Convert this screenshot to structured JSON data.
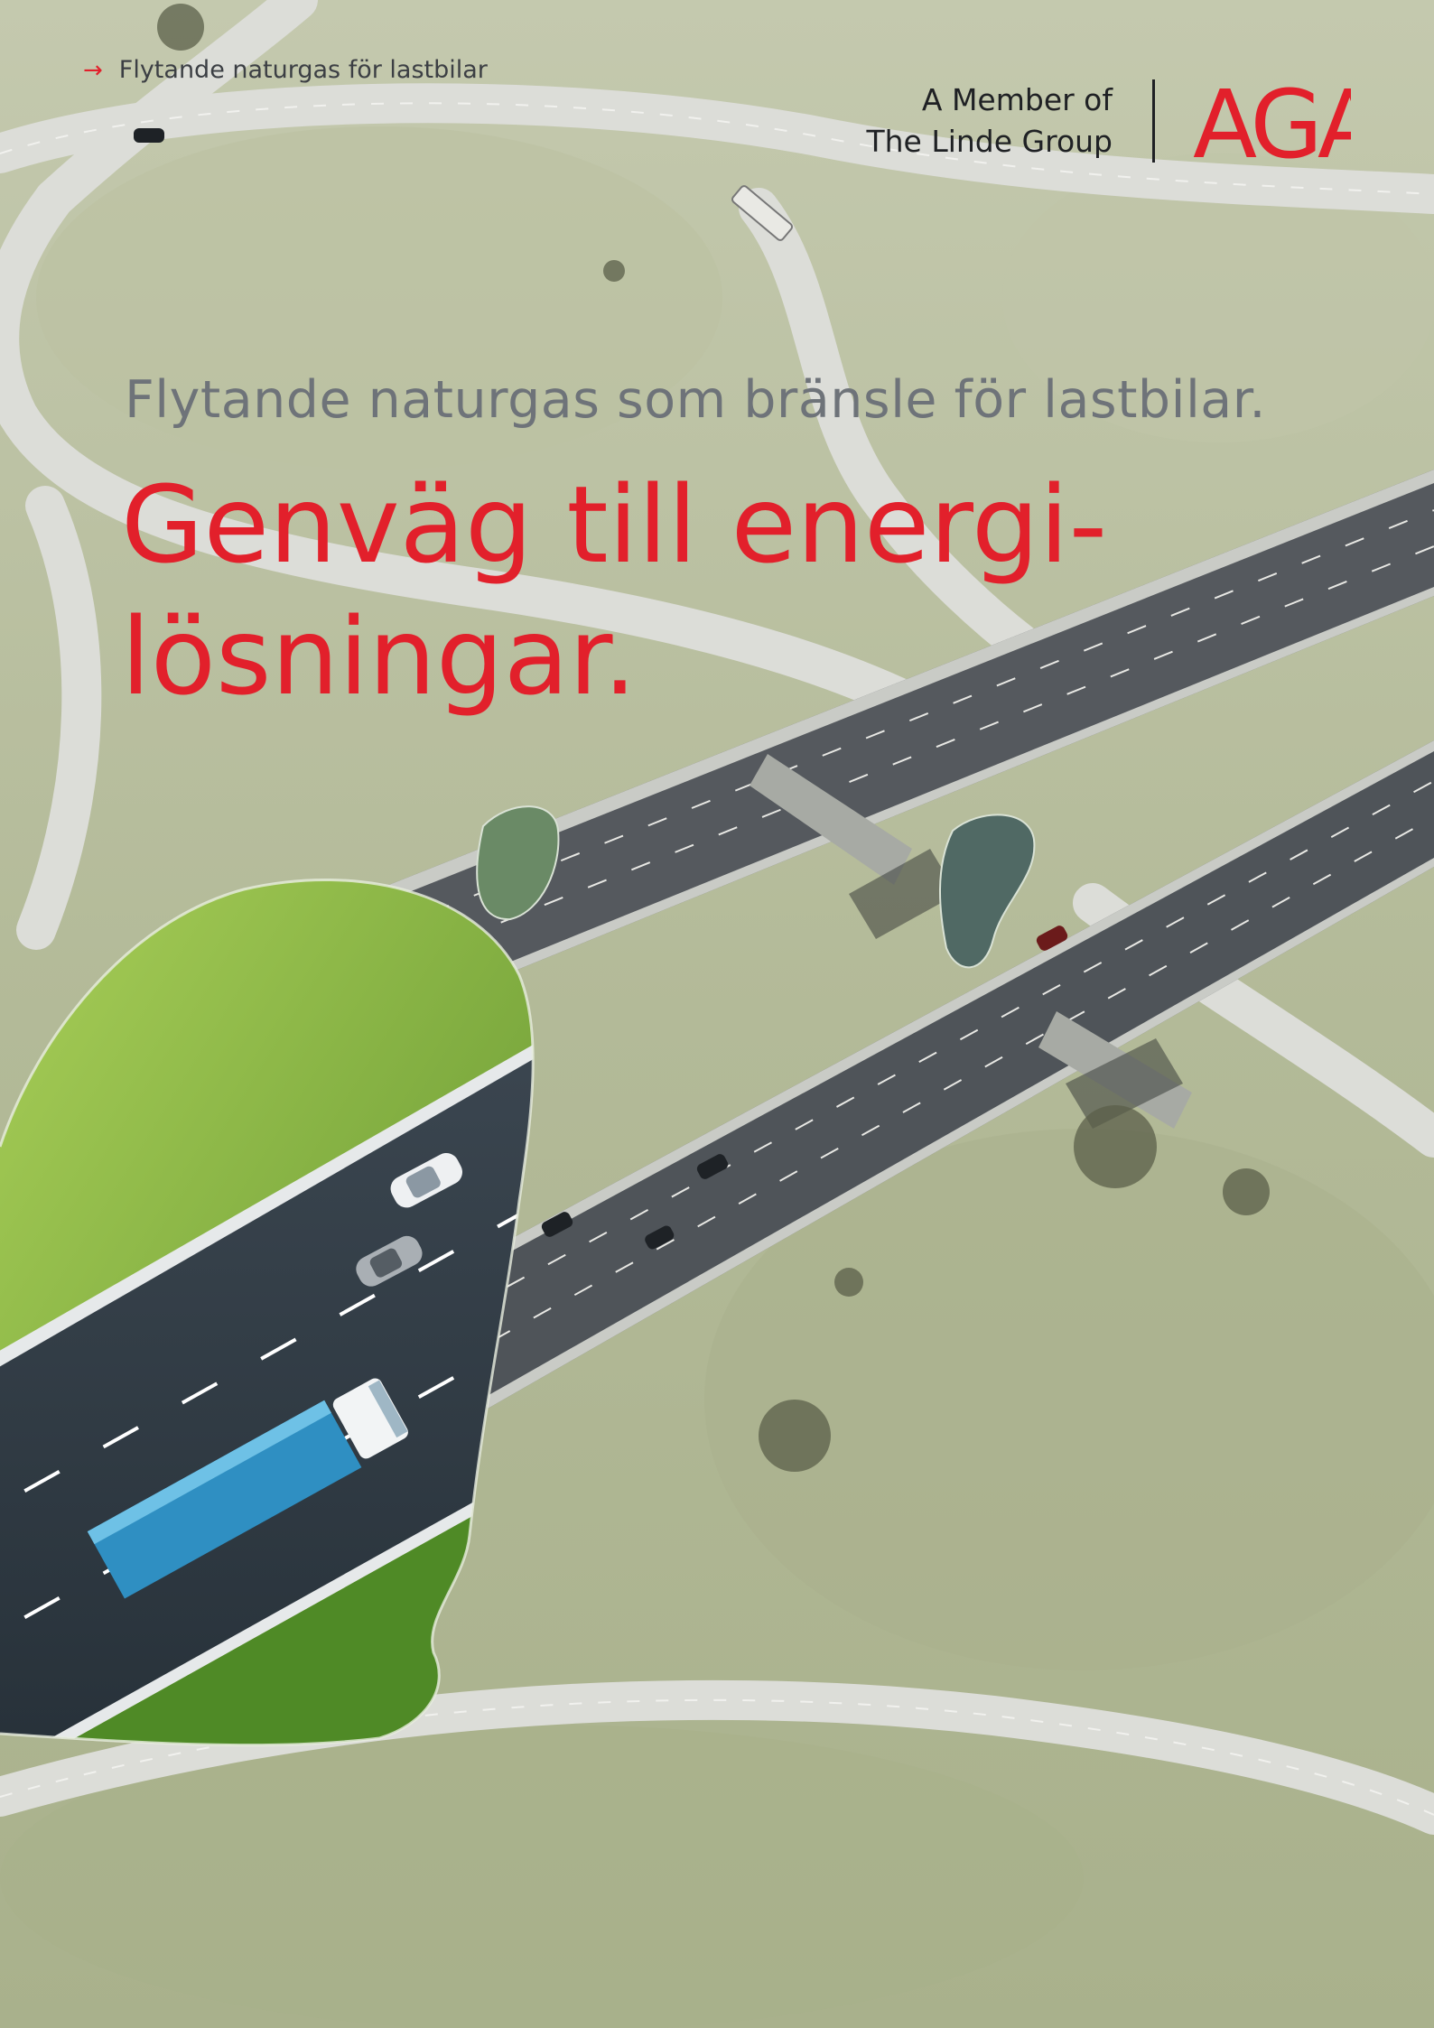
{
  "header": {
    "breadcrumb": "Flytande naturgas för lastbilar",
    "breadcrumb_icon": "arrow-right-icon",
    "member_line1": "A Member of",
    "member_line2": "The Linde Group",
    "logo_text": "AGA"
  },
  "main": {
    "subtitle": "Flytande naturgas som bränsle för lastbilar.",
    "headline_line1": "Genväg till energi-",
    "headline_line2": "lösningar."
  },
  "colors": {
    "accent_red": "#e2202b",
    "subtitle_gray": "#6e7379",
    "text_dark": "#1f2124"
  }
}
